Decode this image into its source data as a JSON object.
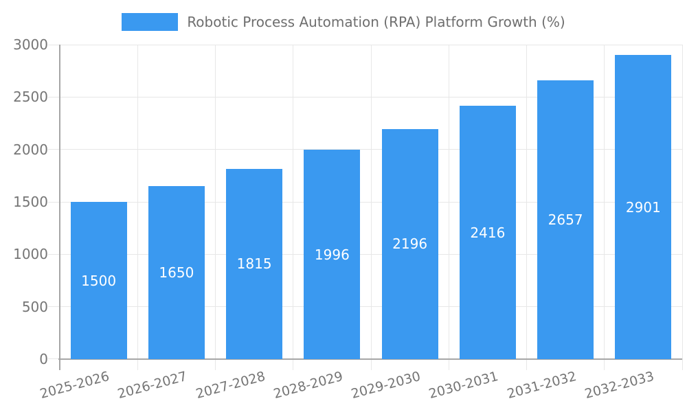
{
  "legend": {
    "label": "Robotic Process Automation (RPA) Platform Growth (%)"
  },
  "colors": {
    "bar": "#3a99f0",
    "grid": "#e7e7e7",
    "axis": "#a6a6a6",
    "tick_text": "#757575",
    "legend_text": "#6e6e6e",
    "value_text": "#ffffff",
    "background": "#ffffff"
  },
  "chart_data": {
    "type": "bar",
    "title": "Robotic Process Automation (RPA) Platform Growth (%)",
    "categories": [
      "2025-2026",
      "2026-2027",
      "2027-2028",
      "2028-2029",
      "2029-2030",
      "2030-2031",
      "2031-2032",
      "2032-2033"
    ],
    "values": [
      1500,
      1650,
      1815,
      1996,
      2196,
      2416,
      2657,
      2901
    ],
    "value_labels": [
      "1500",
      "1650",
      "1815",
      "1996",
      "2196",
      "2416",
      "2657",
      "2901"
    ],
    "xlabel": "",
    "ylabel": "",
    "ylim": [
      0,
      3000
    ],
    "yticks": [
      0,
      500,
      1000,
      1500,
      2000,
      2500,
      3000
    ],
    "ytick_labels": [
      "0",
      "500",
      "1000",
      "1500",
      "2000",
      "2500",
      "3000"
    ],
    "grid": true,
    "legend_position": "top-center",
    "x_label_rotation_deg": -15,
    "bar_color": "#3a99f0"
  }
}
